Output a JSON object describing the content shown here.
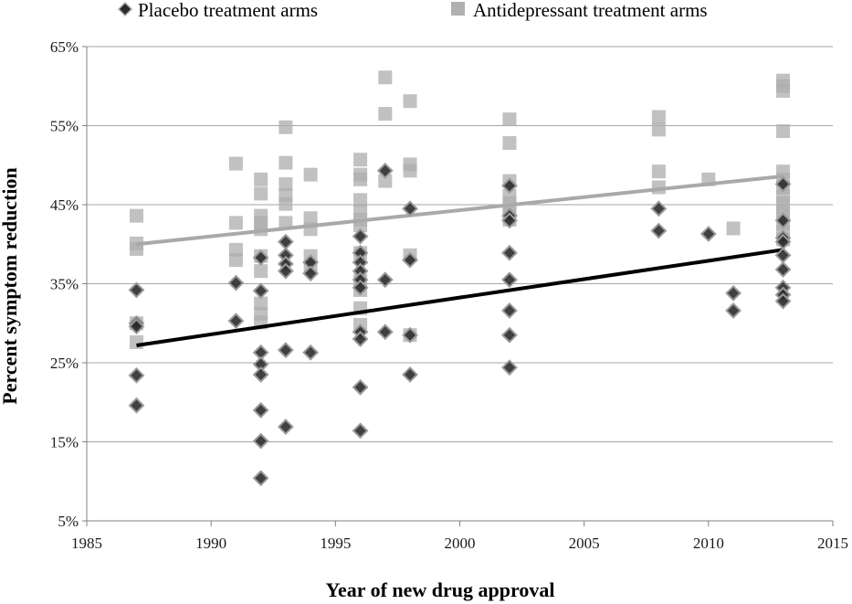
{
  "chart_data": {
    "type": "scatter",
    "title": "",
    "xlabel": "Year of new drug approval",
    "ylabel": "Percent symptom reduction",
    "xlim": [
      1985,
      2015
    ],
    "ylim": [
      5,
      65
    ],
    "x_ticks": [
      1985,
      1990,
      1995,
      2000,
      2005,
      2010,
      2015
    ],
    "y_ticks": [
      5,
      15,
      25,
      35,
      45,
      55,
      65
    ],
    "y_tick_labels": [
      "5%",
      "15%",
      "25%",
      "35%",
      "45%",
      "55%",
      "65%"
    ],
    "grid": "horizontal",
    "legend_position": "top",
    "series": [
      {
        "name": "Placebo treatment arms",
        "marker": "diamond",
        "color": "#2b2b2b",
        "points": [
          [
            1987,
            34.2
          ],
          [
            1987,
            30.0
          ],
          [
            1987,
            29.6
          ],
          [
            1987,
            23.4
          ],
          [
            1987,
            19.6
          ],
          [
            1991,
            35.1
          ],
          [
            1991,
            30.3
          ],
          [
            1992,
            38.3
          ],
          [
            1992,
            34.1
          ],
          [
            1992,
            26.3
          ],
          [
            1992,
            24.8
          ],
          [
            1992,
            23.5
          ],
          [
            1992,
            19.0
          ],
          [
            1992,
            15.1
          ],
          [
            1992,
            10.4
          ],
          [
            1993,
            40.3
          ],
          [
            1993,
            38.6
          ],
          [
            1993,
            37.5
          ],
          [
            1993,
            36.6
          ],
          [
            1993,
            26.6
          ],
          [
            1993,
            16.9
          ],
          [
            1994,
            37.7
          ],
          [
            1994,
            36.3
          ],
          [
            1994,
            26.3
          ],
          [
            1996,
            41.0
          ],
          [
            1996,
            38.9
          ],
          [
            1996,
            37.7
          ],
          [
            1996,
            36.6
          ],
          [
            1996,
            35.5
          ],
          [
            1996,
            34.5
          ],
          [
            1996,
            28.9
          ],
          [
            1996,
            28.0
          ],
          [
            1996,
            21.9
          ],
          [
            1996,
            16.4
          ],
          [
            1997,
            49.3
          ],
          [
            1997,
            35.5
          ],
          [
            1997,
            28.9
          ],
          [
            1998,
            44.5
          ],
          [
            1998,
            38.0
          ],
          [
            1998,
            28.5
          ],
          [
            1998,
            23.5
          ],
          [
            2002,
            47.4
          ],
          [
            2002,
            43.6
          ],
          [
            2002,
            43.0
          ],
          [
            2002,
            38.9
          ],
          [
            2002,
            35.5
          ],
          [
            2002,
            31.6
          ],
          [
            2002,
            28.5
          ],
          [
            2002,
            24.4
          ],
          [
            2008,
            44.5
          ],
          [
            2008,
            41.7
          ],
          [
            2010,
            41.3
          ],
          [
            2011,
            33.8
          ],
          [
            2011,
            31.6
          ],
          [
            2013,
            47.6
          ],
          [
            2013,
            43.0
          ],
          [
            2013,
            40.8
          ],
          [
            2013,
            40.3
          ],
          [
            2013,
            38.6
          ],
          [
            2013,
            36.8
          ],
          [
            2013,
            34.5
          ],
          [
            2013,
            33.6
          ],
          [
            2013,
            32.8
          ]
        ],
        "trend": [
          [
            1987,
            27.2
          ],
          [
            2013,
            39.3
          ]
        ]
      },
      {
        "name": "Antidepressant treatment arms",
        "marker": "square",
        "color": "#b0b0b0",
        "points": [
          [
            1987,
            43.6
          ],
          [
            1987,
            40.1
          ],
          [
            1987,
            39.4
          ],
          [
            1987,
            30.0
          ],
          [
            1987,
            27.6
          ],
          [
            1991,
            50.2
          ],
          [
            1991,
            42.7
          ],
          [
            1991,
            39.3
          ],
          [
            1991,
            38.0
          ],
          [
            1992,
            48.2
          ],
          [
            1992,
            46.4
          ],
          [
            1992,
            43.6
          ],
          [
            1992,
            42.7
          ],
          [
            1992,
            41.9
          ],
          [
            1992,
            38.5
          ],
          [
            1992,
            36.6
          ],
          [
            1992,
            32.5
          ],
          [
            1992,
            31.2
          ],
          [
            1992,
            30.1
          ],
          [
            1993,
            54.8
          ],
          [
            1993,
            50.3
          ],
          [
            1993,
            47.6
          ],
          [
            1993,
            46.2
          ],
          [
            1993,
            45.1
          ],
          [
            1993,
            42.7
          ],
          [
            1994,
            48.8
          ],
          [
            1994,
            43.3
          ],
          [
            1994,
            41.9
          ],
          [
            1994,
            38.5
          ],
          [
            1994,
            37.1
          ],
          [
            1996,
            50.7
          ],
          [
            1996,
            48.8
          ],
          [
            1996,
            48.2
          ],
          [
            1996,
            45.6
          ],
          [
            1996,
            44.2
          ],
          [
            1996,
            43.1
          ],
          [
            1996,
            42.4
          ],
          [
            1996,
            38.9
          ],
          [
            1996,
            35.4
          ],
          [
            1996,
            34.2
          ],
          [
            1996,
            31.9
          ],
          [
            1996,
            29.8
          ],
          [
            1997,
            61.1
          ],
          [
            1997,
            56.5
          ],
          [
            1997,
            48.0
          ],
          [
            1998,
            58.1
          ],
          [
            1998,
            50.1
          ],
          [
            1998,
            49.3
          ],
          [
            1998,
            38.6
          ],
          [
            1998,
            28.5
          ],
          [
            2002,
            55.8
          ],
          [
            2002,
            52.8
          ],
          [
            2002,
            48.0
          ],
          [
            2002,
            46.1
          ],
          [
            2002,
            45.2
          ],
          [
            2002,
            44.3
          ],
          [
            2002,
            43.6
          ],
          [
            2002,
            43.1
          ],
          [
            2008,
            56.1
          ],
          [
            2008,
            54.5
          ],
          [
            2008,
            49.2
          ],
          [
            2008,
            47.2
          ],
          [
            2010,
            48.2
          ],
          [
            2011,
            42.0
          ],
          [
            2013,
            60.7
          ],
          [
            2013,
            60.0
          ],
          [
            2013,
            59.4
          ],
          [
            2013,
            54.3
          ],
          [
            2013,
            49.2
          ],
          [
            2013,
            48.2
          ],
          [
            2013,
            47.2
          ],
          [
            2013,
            46.1
          ],
          [
            2013,
            45.2
          ],
          [
            2013,
            44.3
          ],
          [
            2013,
            43.6
          ],
          [
            2013,
            42.6
          ],
          [
            2013,
            41.6
          ],
          [
            2013,
            40.6
          ]
        ],
        "trend": [
          [
            1987,
            40.0
          ],
          [
            2013,
            48.6
          ]
        ]
      }
    ]
  }
}
